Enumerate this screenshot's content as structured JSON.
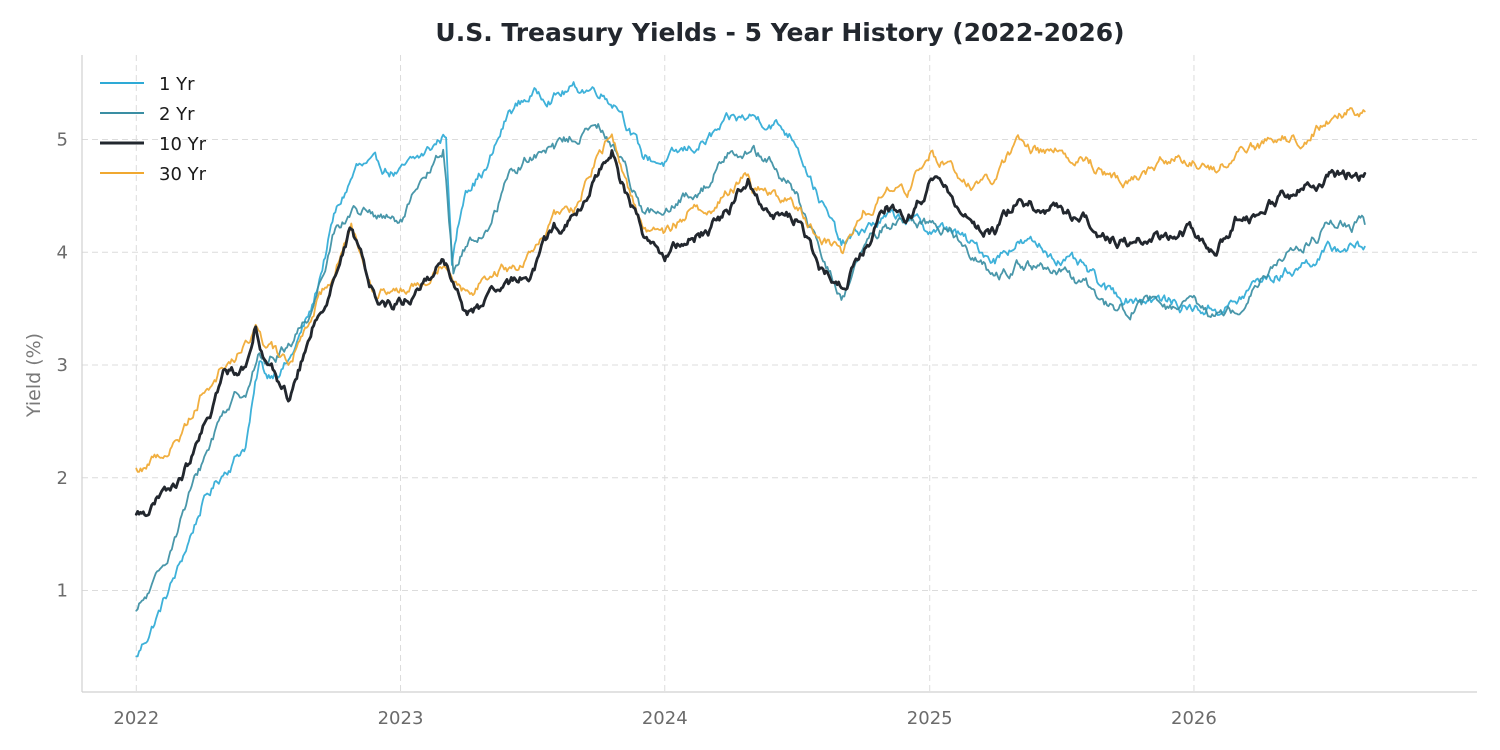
{
  "chart_data": {
    "type": "line",
    "title": "U.S. Treasury Yields - 5 Year History (2022-2026)",
    "xlabel": "",
    "ylabel": "Yield (%)",
    "x_ticks": [
      "2022",
      "2023",
      "2024",
      "2025",
      "2026"
    ],
    "y_ticks": [
      "1",
      "2",
      "3",
      "4",
      "5"
    ],
    "xlim": [
      "2021-10-18",
      "2027-01-27"
    ],
    "ylim": [
      0.1,
      5.75
    ],
    "grid": true,
    "legend_position": "top-left",
    "series": [
      {
        "name": "1 Yr",
        "color": "#2eaad6",
        "points": [
          [
            "2022-01-01",
            0.4
          ],
          [
            "2022-02-01",
            0.8
          ],
          [
            "2022-03-01",
            1.2
          ],
          [
            "2022-04-01",
            1.75
          ],
          [
            "2022-05-01",
            2.05
          ],
          [
            "2022-06-01",
            2.3
          ],
          [
            "2022-06-20",
            3.0
          ],
          [
            "2022-07-01",
            2.9
          ],
          [
            "2022-08-01",
            3.05
          ],
          [
            "2022-09-01",
            3.5
          ],
          [
            "2022-10-01",
            4.3
          ],
          [
            "2022-11-01",
            4.75
          ],
          [
            "2022-12-01",
            4.75
          ],
          [
            "2023-01-01",
            4.7
          ],
          [
            "2023-02-01",
            4.85
          ],
          [
            "2023-03-05",
            5.05
          ],
          [
            "2023-03-13",
            3.9
          ],
          [
            "2023-04-01",
            4.6
          ],
          [
            "2023-05-01",
            4.75
          ],
          [
            "2023-06-01",
            5.25
          ],
          [
            "2023-07-01",
            5.4
          ],
          [
            "2023-08-01",
            5.4
          ],
          [
            "2023-09-01",
            5.45
          ],
          [
            "2023-10-01",
            5.45
          ],
          [
            "2023-11-01",
            5.3
          ],
          [
            "2023-12-01",
            4.85
          ],
          [
            "2024-01-01",
            4.8
          ],
          [
            "2024-02-01",
            4.9
          ],
          [
            "2024-03-01",
            5.0
          ],
          [
            "2024-04-01",
            5.15
          ],
          [
            "2024-05-01",
            5.2
          ],
          [
            "2024-06-01",
            5.15
          ],
          [
            "2024-07-01",
            5.0
          ],
          [
            "2024-08-01",
            4.5
          ],
          [
            "2024-09-01",
            4.05
          ],
          [
            "2024-10-01",
            4.2
          ],
          [
            "2024-11-01",
            4.3
          ],
          [
            "2024-12-01",
            4.3
          ],
          [
            "2025-01-01",
            4.2
          ],
          [
            "2025-02-01",
            4.2
          ],
          [
            "2025-03-01",
            4.05
          ],
          [
            "2025-04-01",
            3.95
          ],
          [
            "2025-05-01",
            4.1
          ],
          [
            "2025-06-01",
            4.05
          ],
          [
            "2025-07-01",
            3.95
          ],
          [
            "2025-08-01",
            3.85
          ],
          [
            "2025-09-01",
            3.65
          ],
          [
            "2025-10-01",
            3.6
          ],
          [
            "2025-11-01",
            3.6
          ],
          [
            "2025-12-01",
            3.55
          ],
          [
            "2026-01-01",
            3.5
          ],
          [
            "2026-02-01",
            3.5
          ],
          [
            "2026-03-01",
            3.55
          ],
          [
            "2026-04-01",
            3.75
          ],
          [
            "2026-05-01",
            3.8
          ],
          [
            "2026-06-01",
            3.9
          ],
          [
            "2026-07-01",
            4.0
          ],
          [
            "2026-08-01",
            4.05
          ],
          [
            "2026-08-25",
            4.05
          ]
        ]
      },
      {
        "name": "2 Yr",
        "color": "#3a8ea3",
        "points": [
          [
            "2022-01-01",
            0.8
          ],
          [
            "2022-02-01",
            1.1
          ],
          [
            "2022-03-01",
            1.6
          ],
          [
            "2022-04-01",
            2.1
          ],
          [
            "2022-05-01",
            2.6
          ],
          [
            "2022-06-01",
            2.8
          ],
          [
            "2022-06-20",
            3.1
          ],
          [
            "2022-07-01",
            3.0
          ],
          [
            "2022-08-01",
            3.2
          ],
          [
            "2022-09-01",
            3.5
          ],
          [
            "2022-10-01",
            4.2
          ],
          [
            "2022-11-01",
            4.4
          ],
          [
            "2022-12-01",
            4.3
          ],
          [
            "2023-01-01",
            4.25
          ],
          [
            "2023-02-01",
            4.6
          ],
          [
            "2023-03-01",
            4.9
          ],
          [
            "2023-03-15",
            3.85
          ],
          [
            "2023-04-01",
            4.05
          ],
          [
            "2023-05-01",
            4.2
          ],
          [
            "2023-06-01",
            4.7
          ],
          [
            "2023-07-01",
            4.85
          ],
          [
            "2023-08-01",
            4.9
          ],
          [
            "2023-09-01",
            5.05
          ],
          [
            "2023-10-01",
            5.1
          ],
          [
            "2023-11-01",
            4.85
          ],
          [
            "2023-12-01",
            4.4
          ],
          [
            "2024-01-01",
            4.3
          ],
          [
            "2024-02-01",
            4.5
          ],
          [
            "2024-03-01",
            4.6
          ],
          [
            "2024-04-01",
            4.95
          ],
          [
            "2024-05-01",
            4.9
          ],
          [
            "2024-06-01",
            4.75
          ],
          [
            "2024-07-01",
            4.5
          ],
          [
            "2024-08-01",
            4.0
          ],
          [
            "2024-09-01",
            3.6
          ],
          [
            "2024-10-01",
            4.0
          ],
          [
            "2024-11-01",
            4.25
          ],
          [
            "2024-12-01",
            4.3
          ],
          [
            "2025-01-01",
            4.25
          ],
          [
            "2025-02-01",
            4.2
          ],
          [
            "2025-03-01",
            4.0
          ],
          [
            "2025-04-01",
            3.75
          ],
          [
            "2025-05-01",
            3.9
          ],
          [
            "2025-06-01",
            3.85
          ],
          [
            "2025-07-01",
            3.8
          ],
          [
            "2025-08-01",
            3.7
          ],
          [
            "2025-09-01",
            3.55
          ],
          [
            "2025-10-01",
            3.5
          ],
          [
            "2025-11-01",
            3.55
          ],
          [
            "2025-12-01",
            3.5
          ],
          [
            "2026-01-01",
            3.5
          ],
          [
            "2026-02-01",
            3.45
          ],
          [
            "2026-03-01",
            3.5
          ],
          [
            "2026-04-01",
            3.8
          ],
          [
            "2026-05-01",
            3.95
          ],
          [
            "2026-06-01",
            4.05
          ],
          [
            "2026-07-01",
            4.2
          ],
          [
            "2026-08-01",
            4.25
          ],
          [
            "2026-08-25",
            4.25
          ]
        ]
      },
      {
        "name": "10 Yr",
        "color": "#22272e",
        "points": [
          [
            "2022-01-01",
            1.65
          ],
          [
            "2022-02-01",
            1.8
          ],
          [
            "2022-03-01",
            1.95
          ],
          [
            "2022-04-01",
            2.35
          ],
          [
            "2022-05-01",
            2.9
          ],
          [
            "2022-06-01",
            3.0
          ],
          [
            "2022-06-15",
            3.4
          ],
          [
            "2022-07-01",
            3.0
          ],
          [
            "2022-08-01",
            2.7
          ],
          [
            "2022-09-01",
            3.3
          ],
          [
            "2022-10-01",
            3.8
          ],
          [
            "2022-10-25",
            4.2
          ],
          [
            "2022-11-01",
            4.05
          ],
          [
            "2022-12-01",
            3.55
          ],
          [
            "2023-01-01",
            3.55
          ],
          [
            "2023-02-01",
            3.7
          ],
          [
            "2023-03-01",
            3.95
          ],
          [
            "2023-04-01",
            3.45
          ],
          [
            "2023-05-01",
            3.55
          ],
          [
            "2023-06-01",
            3.7
          ],
          [
            "2023-07-01",
            3.85
          ],
          [
            "2023-08-01",
            4.2
          ],
          [
            "2023-09-01",
            4.3
          ],
          [
            "2023-10-01",
            4.7
          ],
          [
            "2023-10-20",
            4.95
          ],
          [
            "2023-11-01",
            4.6
          ],
          [
            "2023-12-01",
            4.2
          ],
          [
            "2024-01-01",
            3.95
          ],
          [
            "2024-02-01",
            4.1
          ],
          [
            "2024-03-01",
            4.2
          ],
          [
            "2024-04-01",
            4.4
          ],
          [
            "2024-04-25",
            4.65
          ],
          [
            "2024-05-01",
            4.55
          ],
          [
            "2024-06-01",
            4.35
          ],
          [
            "2024-07-01",
            4.3
          ],
          [
            "2024-08-01",
            3.85
          ],
          [
            "2024-09-01",
            3.7
          ],
          [
            "2024-10-01",
            4.0
          ],
          [
            "2024-11-01",
            4.35
          ],
          [
            "2024-12-01",
            4.3
          ],
          [
            "2025-01-01",
            4.6
          ],
          [
            "2025-02-01",
            4.5
          ],
          [
            "2025-03-01",
            4.25
          ],
          [
            "2025-04-01",
            4.2
          ],
          [
            "2025-05-01",
            4.45
          ],
          [
            "2025-06-01",
            4.4
          ],
          [
            "2025-07-01",
            4.35
          ],
          [
            "2025-08-01",
            4.3
          ],
          [
            "2025-09-01",
            4.15
          ],
          [
            "2025-10-01",
            4.1
          ],
          [
            "2025-11-01",
            4.1
          ],
          [
            "2025-12-01",
            4.15
          ],
          [
            "2026-01-01",
            4.2
          ],
          [
            "2026-02-01",
            4.05
          ],
          [
            "2026-03-01",
            4.3
          ],
          [
            "2026-04-01",
            4.35
          ],
          [
            "2026-05-01",
            4.5
          ],
          [
            "2026-06-01",
            4.55
          ],
          [
            "2026-07-01",
            4.65
          ],
          [
            "2026-08-01",
            4.7
          ],
          [
            "2026-08-25",
            4.7
          ]
        ]
      },
      {
        "name": "30 Yr",
        "color": "#f0a830",
        "points": [
          [
            "2022-01-01",
            2.05
          ],
          [
            "2022-02-01",
            2.2
          ],
          [
            "2022-03-01",
            2.35
          ],
          [
            "2022-04-01",
            2.75
          ],
          [
            "2022-05-01",
            3.0
          ],
          [
            "2022-06-01",
            3.15
          ],
          [
            "2022-06-15",
            3.35
          ],
          [
            "2022-07-01",
            3.15
          ],
          [
            "2022-08-01",
            3.0
          ],
          [
            "2022-09-01",
            3.5
          ],
          [
            "2022-10-01",
            3.85
          ],
          [
            "2022-10-25",
            4.25
          ],
          [
            "2022-11-01",
            4.1
          ],
          [
            "2022-12-01",
            3.65
          ],
          [
            "2023-01-01",
            3.65
          ],
          [
            "2023-02-01",
            3.8
          ],
          [
            "2023-03-01",
            3.95
          ],
          [
            "2023-04-01",
            3.65
          ],
          [
            "2023-05-01",
            3.8
          ],
          [
            "2023-06-01",
            3.85
          ],
          [
            "2023-07-01",
            3.95
          ],
          [
            "2023-08-01",
            4.3
          ],
          [
            "2023-09-01",
            4.4
          ],
          [
            "2023-10-01",
            4.85
          ],
          [
            "2023-10-20",
            5.05
          ],
          [
            "2023-11-01",
            4.75
          ],
          [
            "2023-12-01",
            4.25
          ],
          [
            "2024-01-01",
            4.15
          ],
          [
            "2024-02-01",
            4.35
          ],
          [
            "2024-03-01",
            4.4
          ],
          [
            "2024-04-01",
            4.55
          ],
          [
            "2024-04-25",
            4.7
          ],
          [
            "2024-05-01",
            4.6
          ],
          [
            "2024-06-01",
            4.5
          ],
          [
            "2024-07-01",
            4.4
          ],
          [
            "2024-08-01",
            4.15
          ],
          [
            "2024-09-01",
            4.0
          ],
          [
            "2024-10-01",
            4.35
          ],
          [
            "2024-11-01",
            4.55
          ],
          [
            "2024-12-01",
            4.55
          ],
          [
            "2025-01-01",
            4.85
          ],
          [
            "2025-02-01",
            4.75
          ],
          [
            "2025-03-01",
            4.6
          ],
          [
            "2025-04-01",
            4.65
          ],
          [
            "2025-05-01",
            4.95
          ],
          [
            "2025-06-01",
            4.9
          ],
          [
            "2025-07-01",
            4.9
          ],
          [
            "2025-08-01",
            4.85
          ],
          [
            "2025-09-01",
            4.7
          ],
          [
            "2025-10-01",
            4.65
          ],
          [
            "2025-11-01",
            4.75
          ],
          [
            "2025-12-01",
            4.85
          ],
          [
            "2026-01-01",
            4.8
          ],
          [
            "2026-02-01",
            4.75
          ],
          [
            "2026-03-01",
            4.9
          ],
          [
            "2026-04-01",
            4.95
          ],
          [
            "2026-05-01",
            5.05
          ],
          [
            "2026-06-01",
            4.95
          ],
          [
            "2026-07-01",
            5.15
          ],
          [
            "2026-08-01",
            5.25
          ],
          [
            "2026-08-25",
            5.25
          ]
        ]
      }
    ]
  }
}
